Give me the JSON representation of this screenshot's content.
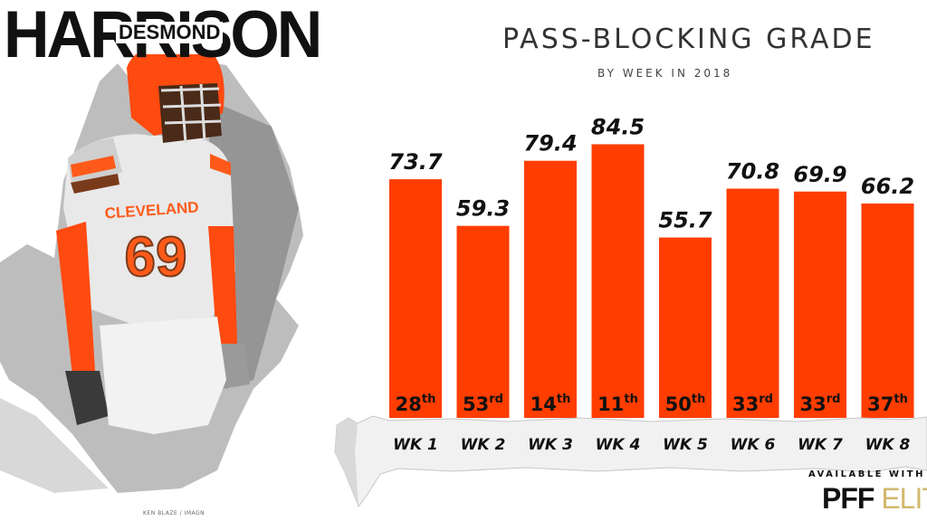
{
  "player": {
    "last_name": "HARRISON",
    "first_name": "DESMOND"
  },
  "jersey": {
    "team": "CLEVELAND",
    "number": "69"
  },
  "chart_data": {
    "type": "bar",
    "title": "PASS-BLOCKING GRADE",
    "subtitle": "BY WEEK IN 2018",
    "categories": [
      "WK 1",
      "WK 2",
      "WK 3",
      "WK 4",
      "WK 5",
      "WK 6",
      "WK 7",
      "WK 8"
    ],
    "values": [
      73.7,
      59.3,
      79.4,
      84.5,
      55.7,
      70.8,
      69.9,
      66.2
    ],
    "value_labels": [
      "73.7",
      "59.3",
      "79.4",
      "84.5",
      "55.7",
      "70.8",
      "69.9",
      "66.2"
    ],
    "ranks": [
      {
        "num": "28",
        "suffix": "th"
      },
      {
        "num": "53",
        "suffix": "rd"
      },
      {
        "num": "14",
        "suffix": "th"
      },
      {
        "num": "11",
        "suffix": "th"
      },
      {
        "num": "50",
        "suffix": "th"
      },
      {
        "num": "33",
        "suffix": "rd"
      },
      {
        "num": "33",
        "suffix": "rd"
      },
      {
        "num": "37",
        "suffix": "th"
      }
    ],
    "xlabel": "",
    "ylabel": "",
    "grid": false,
    "bar_color": "#ff3d00"
  },
  "branding": {
    "available": "AVAILABLE WITH",
    "pff": "PFF",
    "elite": "ELITE"
  },
  "credit": "KEN BLAZE / IMAGN"
}
